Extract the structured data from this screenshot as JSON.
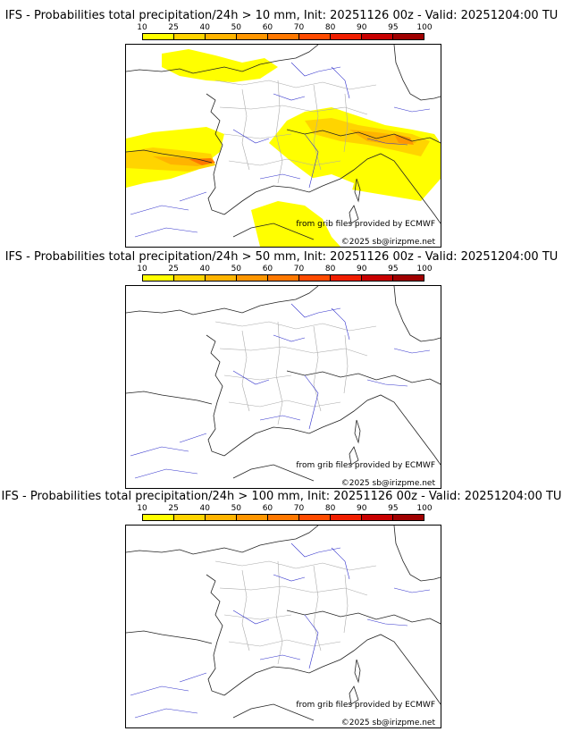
{
  "colorbar": {
    "ticks": [
      "10",
      "25",
      "40",
      "50",
      "60",
      "70",
      "80",
      "90",
      "95",
      "100"
    ],
    "colors": [
      "#ffff00",
      "#ffd400",
      "#ffb400",
      "#ff9600",
      "#ff7800",
      "#ff4b00",
      "#f01e00",
      "#c80000",
      "#a00000"
    ]
  },
  "panels": [
    {
      "title": "IFS - Probabilities total precipitation/24h > 10 mm, Init: 20251126 00z - Valid: 20251204:00 TU",
      "source": "from grib files provided by ECMWF",
      "copyright": "©2025 sb@irizpme.net"
    },
    {
      "title": "IFS - Probabilities total precipitation/24h > 50 mm, Init: 20251126 00z - Valid: 20251204:00 TU",
      "source": "from grib files provided by ECMWF",
      "copyright": "©2025 sb@irizpme.net"
    },
    {
      "title": "IFS - Probabilities total precipitation/24h > 100 mm, Init: 20251126 00z - Valid: 20251204:00 TU",
      "source": "from grib files provided by ECMWF",
      "copyright": "©2025 sb@irizpme.net"
    }
  ]
}
